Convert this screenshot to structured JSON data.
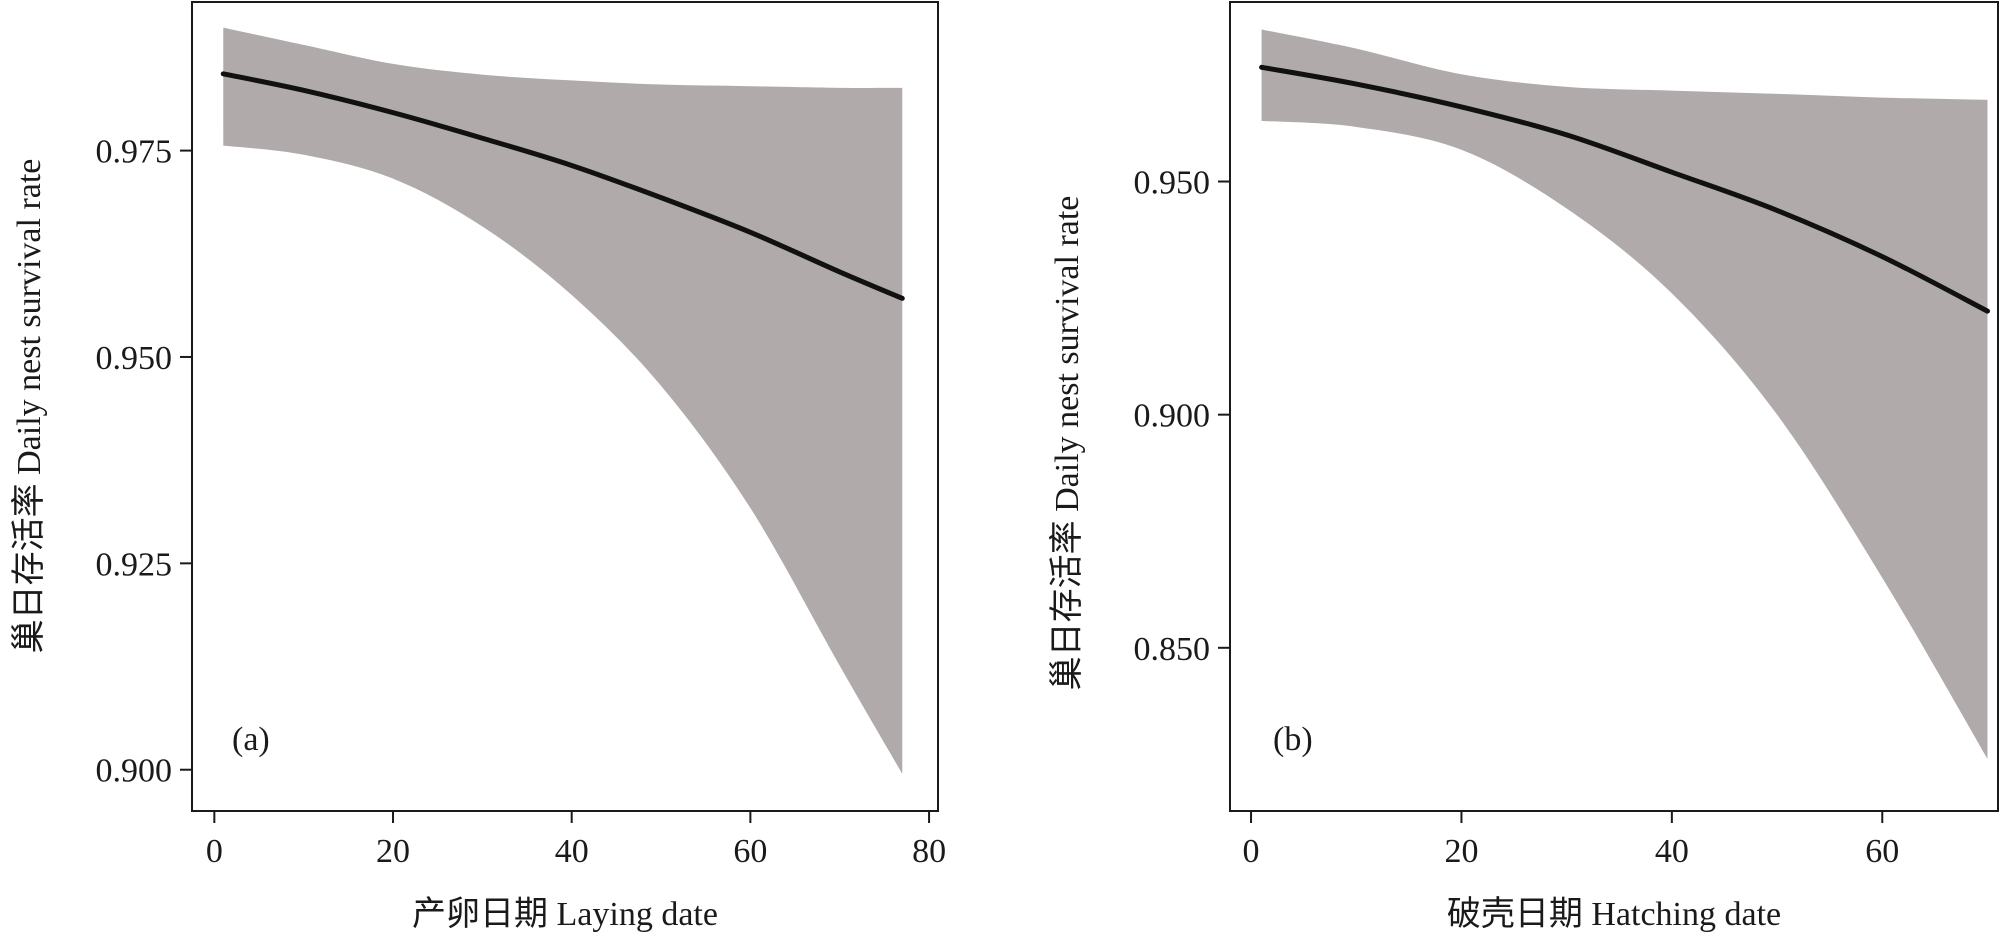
{
  "chart_data": [
    {
      "type": "line",
      "panel_label": "(a)",
      "xlabel": "产卵日期 Laying date",
      "ylabel": "巢日存活率 Daily nest survival rate",
      "xlim": [
        -2.5,
        81
      ],
      "ylim": [
        0.895,
        0.993
      ],
      "xticks": [
        0,
        20,
        40,
        60,
        80
      ],
      "xtick_labels": [
        "0",
        "20",
        "40",
        "60",
        "80"
      ],
      "yticks": [
        0.9,
        0.925,
        0.95,
        0.975
      ],
      "ytick_labels": [
        "0.900",
        "0.925",
        "0.950",
        "0.975"
      ],
      "grid": false,
      "series": [
        {
          "role": "estimate",
          "x": [
            1,
            10,
            20,
            30,
            40,
            50,
            60,
            70,
            77
          ],
          "y": [
            0.9843,
            0.9823,
            0.9796,
            0.9765,
            0.9732,
            0.9693,
            0.9651,
            0.9603,
            0.9571
          ]
        },
        {
          "role": "ci_upper",
          "x": [
            1,
            10,
            20,
            30,
            40,
            50,
            60,
            70,
            77
          ],
          "y": [
            0.9899,
            0.9878,
            0.9855,
            0.9842,
            0.9835,
            0.983,
            0.9828,
            0.9826,
            0.9826
          ]
        },
        {
          "role": "ci_lower",
          "x": [
            1,
            10,
            20,
            30,
            40,
            50,
            60,
            70,
            77
          ],
          "y": [
            0.9756,
            0.9745,
            0.9716,
            0.9658,
            0.9575,
            0.9465,
            0.9317,
            0.9126,
            0.8995
          ]
        }
      ]
    },
    {
      "type": "line",
      "panel_label": "(b)",
      "xlabel": "破壳日期 Hatching date",
      "ylabel": "巢日存活率 Daily nest survival rate",
      "xlim": [
        -2,
        71
      ],
      "ylim": [
        0.815,
        0.9885
      ],
      "xticks": [
        0,
        20,
        40,
        60
      ],
      "xtick_labels": [
        "0",
        "20",
        "40",
        "60"
      ],
      "yticks": [
        0.85,
        0.9,
        0.95
      ],
      "ytick_labels": [
        "0.850",
        "0.900",
        "0.950"
      ],
      "grid": false,
      "series": [
        {
          "role": "estimate",
          "x": [
            1,
            10,
            20,
            30,
            40,
            50,
            60,
            70
          ],
          "y": [
            0.9745,
            0.9709,
            0.966,
            0.96,
            0.952,
            0.9438,
            0.9339,
            0.9222
          ]
        },
        {
          "role": "ci_upper",
          "x": [
            1,
            10,
            20,
            30,
            40,
            50,
            60,
            70
          ],
          "y": [
            0.9826,
            0.9785,
            0.973,
            0.9703,
            0.9695,
            0.9688,
            0.968,
            0.9675
          ]
        },
        {
          "role": "ci_lower",
          "x": [
            1,
            10,
            20,
            30,
            40,
            50,
            60,
            70
          ],
          "y": [
            0.963,
            0.9617,
            0.9568,
            0.9442,
            0.926,
            0.9,
            0.865,
            0.8262
          ]
        }
      ]
    }
  ],
  "colors": {
    "band": "#b1aaab",
    "line": "#111111",
    "axis": "#1a1a1a"
  }
}
